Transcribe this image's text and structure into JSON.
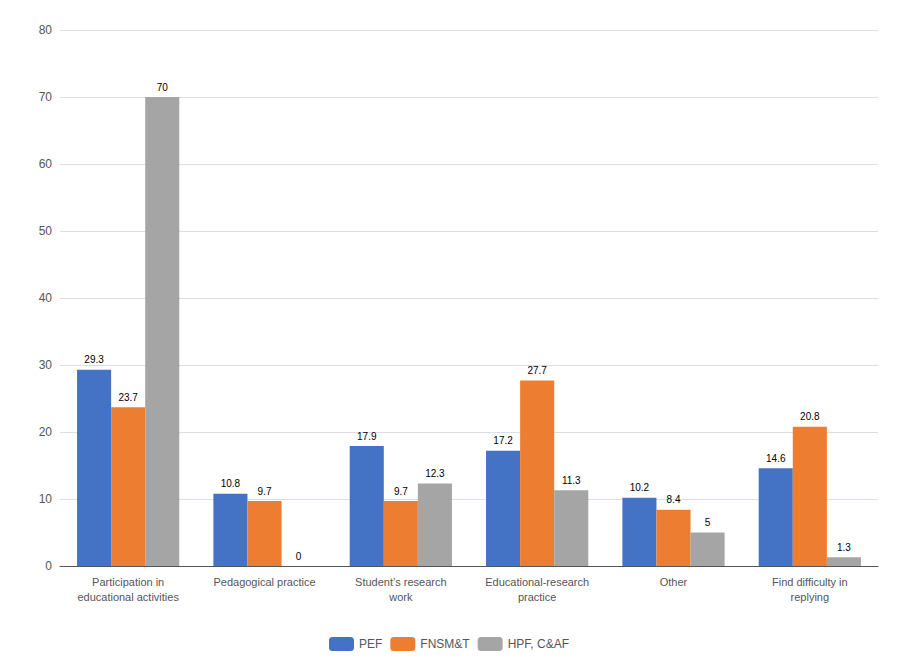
{
  "chart_data": {
    "type": "bar",
    "categories": [
      "Participation in\neducational activities",
      "Pedagogical practice",
      "Student’s research\nwork",
      "Educational-research\npractice",
      "Other",
      "Find difficulty in\nreplying"
    ],
    "series": [
      {
        "name": "PEF",
        "color": "#4472C4",
        "values": [
          29.3,
          10.8,
          17.9,
          17.2,
          10.2,
          14.6
        ]
      },
      {
        "name": "FNSM&T",
        "color": "#ED7D31",
        "values": [
          23.7,
          9.7,
          9.7,
          27.7,
          8.4,
          20.8
        ]
      },
      {
        "name": "HPF, C&AF",
        "color": "#A5A5A5",
        "values": [
          70,
          0,
          12.3,
          11.3,
          5,
          1.3
        ]
      }
    ],
    "ylim": [
      0,
      80
    ],
    "yticks": [
      0,
      10,
      20,
      30,
      40,
      50,
      60,
      70,
      80
    ],
    "grid": true,
    "legend": "bottom",
    "data_labels": true
  }
}
